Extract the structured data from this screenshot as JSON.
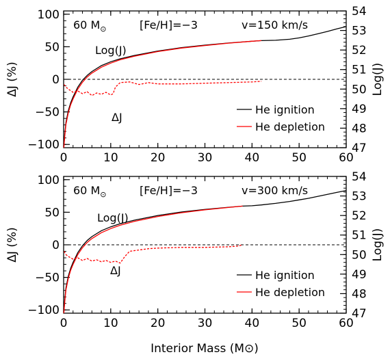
{
  "colors": {
    "he_ignition": "#000000",
    "he_depletion": "#ff0000",
    "zero_line": "#000000"
  },
  "chart_data": [
    {
      "type": "line",
      "title": "",
      "label_mass": "60 M",
      "label_mass_sub": "⊙",
      "label_metal": "[Fe/H]=−3",
      "label_velocity": "v=150 km/s",
      "xlabel": "",
      "ylabel": "ΔJ (%)",
      "ylabel_right": "Log(J)",
      "xlim": [
        0,
        60
      ],
      "ylim": [
        -105,
        105
      ],
      "ylim_right": [
        47,
        54
      ],
      "xticks": [
        "0",
        "10",
        "20",
        "30",
        "40",
        "50",
        "60"
      ],
      "yticks": [
        "−100",
        "−50",
        "0",
        "50",
        "100"
      ],
      "yticks_right": [
        "47",
        "48",
        "49",
        "50",
        "51",
        "52",
        "53",
        "54"
      ],
      "legend_position": "lower-right",
      "annotations": {
        "logj": "Log(J)",
        "deltaj": "ΔJ"
      },
      "zero_reference": 0,
      "series": [
        {
          "name": "He ignition",
          "axis": "right",
          "style": "solid",
          "x": [
            0.05,
            0.2,
            0.5,
            1,
            1.5,
            2,
            3,
            4,
            5,
            6,
            8,
            10,
            12,
            15,
            20,
            25,
            30,
            35,
            40,
            42,
            45,
            48,
            50,
            52,
            54,
            56,
            58,
            60
          ],
          "y": [
            47.0,
            47.6,
            48.3,
            48.9,
            49.3,
            49.6,
            50.1,
            50.45,
            50.7,
            50.9,
            51.2,
            51.4,
            51.55,
            51.72,
            51.95,
            52.12,
            52.25,
            52.36,
            52.45,
            52.48,
            52.5,
            52.55,
            52.62,
            52.72,
            52.83,
            52.95,
            53.08,
            53.2
          ]
        },
        {
          "name": "He depletion",
          "axis": "right",
          "style": "solid",
          "x": [
            0.05,
            0.2,
            0.5,
            1,
            1.5,
            2,
            3,
            4,
            5,
            6,
            8,
            10,
            12,
            15,
            20,
            25,
            30,
            35,
            40,
            42
          ],
          "y": [
            47.0,
            47.5,
            48.2,
            48.8,
            49.2,
            49.5,
            50.0,
            50.35,
            50.62,
            50.82,
            51.12,
            51.33,
            51.5,
            51.68,
            51.92,
            52.1,
            52.23,
            52.35,
            52.45,
            52.48
          ]
        },
        {
          "name": "ΔJ",
          "axis": "left",
          "style": "dashed",
          "x": [
            0.1,
            0.5,
            1,
            2,
            3,
            4,
            5,
            6,
            7,
            8,
            9,
            10,
            10.5,
            11,
            12,
            14,
            16,
            18,
            20,
            25,
            30,
            35,
            40,
            42
          ],
          "y": [
            -8,
            -12,
            -15,
            -20,
            -18,
            -22,
            -19,
            -25,
            -21,
            -23,
            -20,
            -24,
            -22,
            -12,
            -5,
            -4,
            -8,
            -5,
            -7,
            -7,
            -6,
            -5,
            -4,
            -3
          ]
        }
      ]
    },
    {
      "type": "line",
      "title": "",
      "label_mass": "60 M",
      "label_mass_sub": "⊙",
      "label_metal": "[Fe/H]=−3",
      "label_velocity": "v=300 km/s",
      "xlabel": "Interior Mass (M⊙)",
      "ylabel": "ΔJ (%)",
      "ylabel_right": "Log(J)",
      "xlim": [
        0,
        60
      ],
      "ylim": [
        -105,
        105
      ],
      "ylim_right": [
        47,
        54
      ],
      "xticks": [
        "0",
        "10",
        "20",
        "30",
        "40",
        "50",
        "60"
      ],
      "yticks": [
        "−100",
        "−50",
        "0",
        "50",
        "100"
      ],
      "yticks_right": [
        "47",
        "48",
        "49",
        "50",
        "51",
        "52",
        "53",
        "54"
      ],
      "legend_position": "lower-right",
      "annotations": {
        "logj": "Log(J)",
        "deltaj": "ΔJ"
      },
      "zero_reference": 0,
      "series": [
        {
          "name": "He ignition",
          "axis": "right",
          "style": "solid",
          "x": [
            0.05,
            0.2,
            0.5,
            1,
            1.5,
            2,
            3,
            4,
            5,
            6,
            8,
            10,
            12,
            15,
            20,
            25,
            30,
            35,
            38,
            40,
            42,
            45,
            48,
            50,
            52,
            54,
            56,
            58,
            60
          ],
          "y": [
            47.0,
            47.6,
            48.3,
            48.9,
            49.3,
            49.6,
            50.1,
            50.45,
            50.72,
            50.92,
            51.22,
            51.42,
            51.58,
            51.76,
            52.0,
            52.18,
            52.31,
            52.42,
            52.48,
            52.5,
            52.54,
            52.62,
            52.72,
            52.8,
            52.88,
            52.98,
            53.08,
            53.18,
            53.28
          ]
        },
        {
          "name": "He depletion",
          "axis": "right",
          "style": "solid",
          "x": [
            0.05,
            0.2,
            0.5,
            1,
            1.5,
            2,
            3,
            4,
            5,
            6,
            8,
            10,
            12,
            15,
            20,
            25,
            30,
            35,
            38
          ],
          "y": [
            47.0,
            47.5,
            48.2,
            48.8,
            49.2,
            49.5,
            50.0,
            50.35,
            50.62,
            50.82,
            51.12,
            51.33,
            51.5,
            51.7,
            51.95,
            52.14,
            52.29,
            52.41,
            52.48
          ]
        },
        {
          "name": "ΔJ",
          "axis": "left",
          "style": "dashed",
          "x": [
            0.1,
            0.5,
            1,
            2,
            3,
            4,
            5,
            6,
            7,
            8,
            9,
            10,
            11,
            12,
            13,
            14,
            16,
            18,
            20,
            25,
            30,
            35,
            37,
            38
          ],
          "y": [
            -10,
            -15,
            -18,
            -22,
            -20,
            -24,
            -21,
            -25,
            -23,
            -26,
            -24,
            -27,
            -25,
            -28,
            -18,
            -10,
            -8,
            -6,
            -5,
            -4,
            -4,
            -3,
            -2,
            0
          ]
        }
      ]
    }
  ]
}
